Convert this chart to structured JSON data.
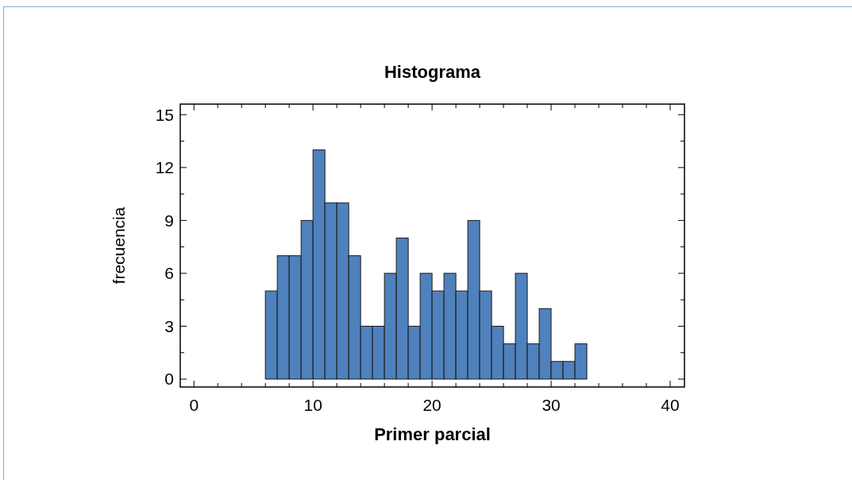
{
  "chart_data": {
    "type": "histogram",
    "title": "Histograma",
    "xlabel": "Primer parcial",
    "ylabel": "frecuencia",
    "bins": [
      0,
      1,
      2,
      3,
      4,
      5,
      6,
      7,
      8,
      9,
      10,
      11,
      12,
      13,
      14,
      15,
      16,
      17,
      18,
      19,
      20,
      21,
      22,
      23,
      24,
      25,
      26,
      27,
      28,
      29,
      30,
      31,
      32,
      33,
      34,
      35
    ],
    "values": [
      0,
      0,
      0,
      0,
      0,
      0,
      5,
      7,
      7,
      9,
      13,
      10,
      10,
      7,
      3,
      3,
      6,
      8,
      3,
      6,
      5,
      6,
      5,
      9,
      5,
      3,
      2,
      6,
      2,
      4,
      1,
      1,
      2,
      0,
      0
    ],
    "color": "#4f81bd",
    "xlim": [
      -1.15,
      41.2
    ],
    "xticks": [
      0,
      {
        "value": 2,
        "label": null
      },
      {
        "value": 4,
        "label": null
      },
      {
        "value": 6,
        "label": null
      },
      {
        "value": 8,
        "label": null
      },
      10,
      {
        "value": 12,
        "label": null
      },
      {
        "value": 14,
        "label": null
      },
      {
        "value": 16,
        "label": null
      },
      {
        "value": 18,
        "label": null
      },
      20,
      {
        "value": 22,
        "label": null
      },
      {
        "value": 24,
        "label": null
      },
      {
        "value": 26,
        "label": null
      },
      {
        "value": 28,
        "label": null
      },
      30,
      {
        "value": 32,
        "label": null
      },
      {
        "value": 34,
        "label": null
      },
      {
        "value": 36,
        "label": null
      },
      {
        "value": 38,
        "label": null
      },
      40
    ],
    "ylim": [
      -0.45,
      15.6
    ],
    "yticks": [
      0,
      {
        "value": 1.5,
        "label": null
      },
      3,
      {
        "value": 4.5,
        "label": null
      },
      6,
      {
        "value": 7.5,
        "label": null
      },
      9,
      {
        "value": 10.5,
        "label": null
      },
      12,
      {
        "value": 13.5,
        "label": null
      },
      15
    ],
    "grid": false
  }
}
